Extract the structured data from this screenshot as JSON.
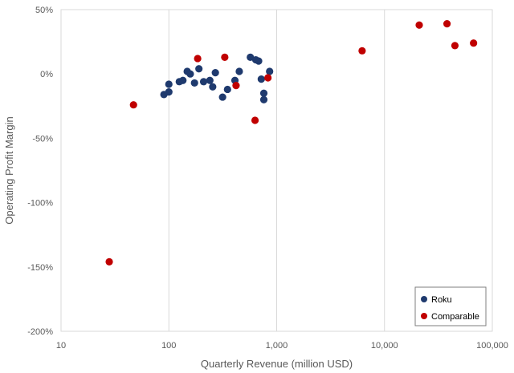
{
  "chart_data": {
    "type": "scatter",
    "xscale": "log",
    "xlabel": "Quarterly Revenue (million USD)",
    "ylabel": "Operating Profit Margin",
    "xlim": [
      10,
      100000
    ],
    "ylim": [
      -200,
      50
    ],
    "x_ticks": [
      10,
      100,
      1000,
      10000,
      100000
    ],
    "x_tick_labels": [
      "10",
      "100",
      "1,000",
      "10,000",
      "100,000"
    ],
    "y_ticks": [
      50,
      0,
      -50,
      -100,
      -150,
      -200
    ],
    "y_tick_labels": [
      "50%",
      "0%",
      "-50%",
      "-100%",
      "-150%",
      "-200%"
    ],
    "grid": "vertical",
    "legend_position": "bottom-right",
    "series": [
      {
        "name": "Roku",
        "color": "#1f3a6e",
        "points": [
          {
            "x": 90,
            "y": -16
          },
          {
            "x": 100,
            "y": -14
          },
          {
            "x": 100,
            "y": -8
          },
          {
            "x": 125,
            "y": -6
          },
          {
            "x": 135,
            "y": -5
          },
          {
            "x": 148,
            "y": 2
          },
          {
            "x": 158,
            "y": 0
          },
          {
            "x": 173,
            "y": -7
          },
          {
            "x": 190,
            "y": 4
          },
          {
            "x": 210,
            "y": -6
          },
          {
            "x": 240,
            "y": -5
          },
          {
            "x": 255,
            "y": -10
          },
          {
            "x": 270,
            "y": 1
          },
          {
            "x": 315,
            "y": -18
          },
          {
            "x": 350,
            "y": -12
          },
          {
            "x": 410,
            "y": -5
          },
          {
            "x": 450,
            "y": 2
          },
          {
            "x": 570,
            "y": 13
          },
          {
            "x": 640,
            "y": 11
          },
          {
            "x": 680,
            "y": 10
          },
          {
            "x": 720,
            "y": -4
          },
          {
            "x": 760,
            "y": -15
          },
          {
            "x": 760,
            "y": -20
          },
          {
            "x": 860,
            "y": 2
          }
        ]
      },
      {
        "name": "Comparable",
        "color": "#c00000",
        "points": [
          {
            "x": 28,
            "y": -146
          },
          {
            "x": 47,
            "y": -24
          },
          {
            "x": 185,
            "y": 12
          },
          {
            "x": 330,
            "y": 13
          },
          {
            "x": 420,
            "y": -9
          },
          {
            "x": 630,
            "y": -36
          },
          {
            "x": 830,
            "y": -3
          },
          {
            "x": 6200,
            "y": 18
          },
          {
            "x": 21000,
            "y": 38
          },
          {
            "x": 38000,
            "y": 39
          },
          {
            "x": 45000,
            "y": 22
          },
          {
            "x": 67000,
            "y": 24
          }
        ]
      }
    ]
  }
}
